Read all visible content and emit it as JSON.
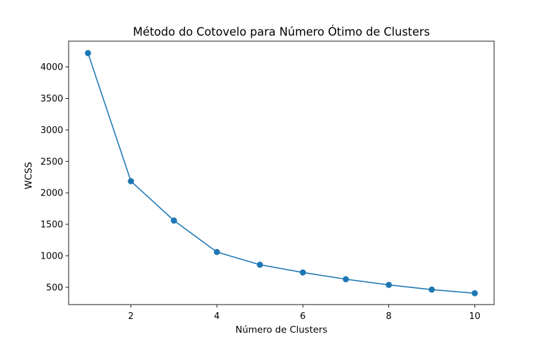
{
  "chart_data": {
    "type": "line",
    "title": "Método do Cotovelo para Número Ótimo de Clusters",
    "xlabel": "Número de Clusters",
    "ylabel": "WCSS",
    "x": [
      1,
      2,
      3,
      4,
      5,
      6,
      7,
      8,
      9,
      10
    ],
    "series": [
      {
        "values": [
          4220,
          2185,
          1560,
          1060,
          858,
          735,
          628,
          538,
          463,
          405
        ],
        "color": "#1f77b4",
        "marker": "circle"
      }
    ],
    "xlim": [
      0.55,
      10.45
    ],
    "ylim": [
      225,
      4410
    ],
    "xticks": [
      2,
      4,
      6,
      8,
      10
    ],
    "yticks": [
      500,
      1000,
      1500,
      2000,
      2500,
      3000,
      3500,
      4000
    ],
    "grid": false,
    "legend": false
  }
}
